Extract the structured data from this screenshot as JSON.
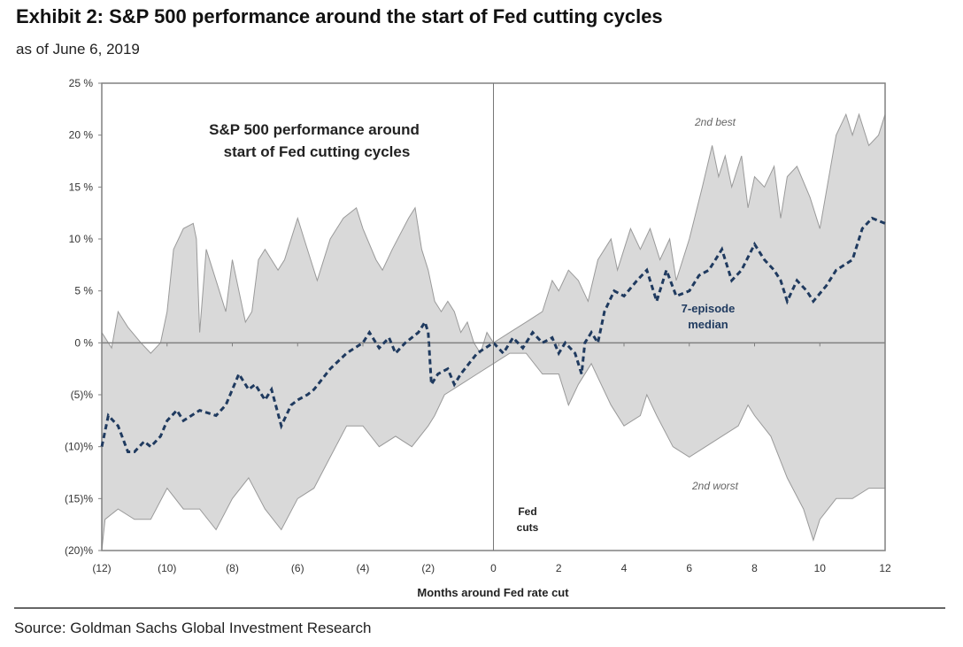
{
  "header": {
    "title": "Exhibit 2: S&P 500 performance around the start of Fed cutting cycles",
    "subtitle": "as of June 6, 2019"
  },
  "footer": {
    "source": "Source: Goldman Sachs Global Investment Research"
  },
  "colors": {
    "band": "#d9d9d9",
    "band_edge": "#9a9a9a",
    "median": "#1f3a5f",
    "axis": "#808080"
  },
  "chart_data": {
    "type": "area",
    "title": "S&P 500 performance around start of Fed cutting cycles",
    "xlabel": "Months around Fed rate cut",
    "ylabel": "",
    "xlim": [
      -12,
      12
    ],
    "ylim": [
      -20,
      25
    ],
    "x_ticks": [
      -12,
      -10,
      -8,
      -6,
      -4,
      -2,
      0,
      2,
      4,
      6,
      8,
      10,
      12
    ],
    "x_tick_labels": [
      "(12)",
      "(10)",
      "(8)",
      "(6)",
      "(4)",
      "(2)",
      "0",
      "2",
      "4",
      "6",
      "8",
      "10",
      "12"
    ],
    "y_ticks": [
      25,
      20,
      15,
      10,
      5,
      0,
      -5,
      -10,
      -15,
      -20
    ],
    "y_tick_labels": [
      "25 %",
      "20 %",
      "15 %",
      "10 %",
      "5 %",
      "0 %",
      "(5)%",
      "(10)%",
      "(15)%",
      "(20)%"
    ],
    "annotations": {
      "best": "2nd best",
      "worst": "2nd worst",
      "median_line1": "7-episode",
      "median_line2": "median",
      "cut_line1": "Fed",
      "cut_line2": "cuts"
    },
    "series": [
      {
        "name": "2nd best",
        "points": [
          [
            -12,
            1
          ],
          [
            -11.7,
            -0.5
          ],
          [
            -11.5,
            3
          ],
          [
            -11.2,
            1.5
          ],
          [
            -10.8,
            0
          ],
          [
            -10.5,
            -1
          ],
          [
            -10.2,
            0
          ],
          [
            -10,
            3
          ],
          [
            -9.8,
            9
          ],
          [
            -9.5,
            11
          ],
          [
            -9.2,
            11.5
          ],
          [
            -9.1,
            10
          ],
          [
            -9,
            1
          ],
          [
            -8.8,
            9
          ],
          [
            -8.6,
            7
          ],
          [
            -8.4,
            5
          ],
          [
            -8.2,
            3
          ],
          [
            -8,
            8
          ],
          [
            -7.8,
            5
          ],
          [
            -7.6,
            2
          ],
          [
            -7.4,
            3
          ],
          [
            -7.2,
            8
          ],
          [
            -7,
            9
          ],
          [
            -6.8,
            8
          ],
          [
            -6.6,
            7
          ],
          [
            -6.4,
            8
          ],
          [
            -6,
            12
          ],
          [
            -5.8,
            10
          ],
          [
            -5.6,
            8
          ],
          [
            -5.4,
            6
          ],
          [
            -5,
            10
          ],
          [
            -4.6,
            12
          ],
          [
            -4.2,
            13
          ],
          [
            -4,
            11
          ],
          [
            -3.6,
            8
          ],
          [
            -3.4,
            7
          ],
          [
            -3.1,
            9
          ],
          [
            -2.6,
            12
          ],
          [
            -2.4,
            13
          ],
          [
            -2.2,
            9
          ],
          [
            -2,
            7
          ],
          [
            -1.8,
            4
          ],
          [
            -1.6,
            3
          ],
          [
            -1.4,
            4
          ],
          [
            -1.2,
            3
          ],
          [
            -1,
            1
          ],
          [
            -0.8,
            2
          ],
          [
            -0.6,
            0
          ],
          [
            -0.4,
            -1
          ],
          [
            -0.2,
            1
          ],
          [
            0,
            0
          ],
          [
            0.5,
            1
          ],
          [
            1,
            2
          ],
          [
            1.5,
            3
          ],
          [
            1.8,
            6
          ],
          [
            2,
            5
          ],
          [
            2.3,
            7
          ],
          [
            2.6,
            6
          ],
          [
            2.9,
            4
          ],
          [
            3.2,
            8
          ],
          [
            3.6,
            10
          ],
          [
            3.8,
            7
          ],
          [
            4.2,
            11
          ],
          [
            4.5,
            9
          ],
          [
            4.8,
            11
          ],
          [
            5.1,
            8
          ],
          [
            5.4,
            10
          ],
          [
            5.6,
            6
          ],
          [
            6,
            10
          ],
          [
            6.4,
            15
          ],
          [
            6.7,
            19
          ],
          [
            6.9,
            16
          ],
          [
            7.1,
            18
          ],
          [
            7.3,
            15
          ],
          [
            7.6,
            18
          ],
          [
            7.8,
            13
          ],
          [
            8,
            16
          ],
          [
            8.3,
            15
          ],
          [
            8.6,
            17
          ],
          [
            8.8,
            12
          ],
          [
            9,
            16
          ],
          [
            9.3,
            17
          ],
          [
            9.7,
            14
          ],
          [
            10,
            11
          ],
          [
            10.5,
            20
          ],
          [
            10.8,
            22
          ],
          [
            11,
            20
          ],
          [
            11.2,
            22
          ],
          [
            11.5,
            19
          ],
          [
            11.8,
            20
          ],
          [
            12,
            22
          ]
        ]
      },
      {
        "name": "2nd worst",
        "points": [
          [
            -12,
            -20
          ],
          [
            -11.9,
            -17
          ],
          [
            -11.5,
            -16
          ],
          [
            -11,
            -17
          ],
          [
            -10.5,
            -17
          ],
          [
            -10,
            -14
          ],
          [
            -9.5,
            -16
          ],
          [
            -9,
            -16
          ],
          [
            -8.5,
            -18
          ],
          [
            -8,
            -15
          ],
          [
            -7.5,
            -13
          ],
          [
            -7,
            -16
          ],
          [
            -6.5,
            -18
          ],
          [
            -6,
            -15
          ],
          [
            -5.5,
            -14
          ],
          [
            -5,
            -11
          ],
          [
            -4.5,
            -8
          ],
          [
            -4,
            -8
          ],
          [
            -3.5,
            -10
          ],
          [
            -3,
            -9
          ],
          [
            -2.5,
            -10
          ],
          [
            -2,
            -8
          ],
          [
            -1.8,
            -7
          ],
          [
            -1.5,
            -5
          ],
          [
            -1,
            -4
          ],
          [
            -0.5,
            -3
          ],
          [
            0,
            -2
          ],
          [
            0.5,
            -1
          ],
          [
            1,
            -1
          ],
          [
            1.5,
            -3
          ],
          [
            2,
            -3
          ],
          [
            2.3,
            -6
          ],
          [
            2.6,
            -4
          ],
          [
            3,
            -2
          ],
          [
            3.3,
            -4
          ],
          [
            3.6,
            -6
          ],
          [
            4,
            -8
          ],
          [
            4.5,
            -7
          ],
          [
            4.7,
            -5
          ],
          [
            5,
            -7
          ],
          [
            5.5,
            -10
          ],
          [
            6,
            -11
          ],
          [
            6.5,
            -10
          ],
          [
            7,
            -9
          ],
          [
            7.5,
            -8
          ],
          [
            7.8,
            -6
          ],
          [
            8,
            -7
          ],
          [
            8.5,
            -9
          ],
          [
            9,
            -13
          ],
          [
            9.5,
            -16
          ],
          [
            9.8,
            -19
          ],
          [
            10,
            -17
          ],
          [
            10.5,
            -15
          ],
          [
            11,
            -15
          ],
          [
            11.5,
            -14
          ],
          [
            12,
            -14
          ]
        ]
      },
      {
        "name": "7-episode median",
        "points": [
          [
            -12,
            -10
          ],
          [
            -11.8,
            -7
          ],
          [
            -11.5,
            -8
          ],
          [
            -11.2,
            -10.5
          ],
          [
            -11,
            -10.5
          ],
          [
            -10.7,
            -9.5
          ],
          [
            -10.5,
            -10
          ],
          [
            -10.2,
            -9
          ],
          [
            -10,
            -7.5
          ],
          [
            -9.7,
            -6.5
          ],
          [
            -9.5,
            -7.5
          ],
          [
            -9,
            -6.5
          ],
          [
            -8.5,
            -7
          ],
          [
            -8.2,
            -6
          ],
          [
            -8,
            -4.5
          ],
          [
            -7.8,
            -3
          ],
          [
            -7.5,
            -4.5
          ],
          [
            -7.3,
            -4
          ],
          [
            -7,
            -5.5
          ],
          [
            -6.8,
            -4.5
          ],
          [
            -6.5,
            -8
          ],
          [
            -6.2,
            -6
          ],
          [
            -6,
            -5.5
          ],
          [
            -5.7,
            -5
          ],
          [
            -5.5,
            -4.5
          ],
          [
            -5,
            -2.5
          ],
          [
            -4.5,
            -1
          ],
          [
            -4,
            0
          ],
          [
            -3.8,
            1
          ],
          [
            -3.5,
            -0.5
          ],
          [
            -3.2,
            0.5
          ],
          [
            -3,
            -1
          ],
          [
            -2.7,
            0
          ],
          [
            -2.3,
            1
          ],
          [
            -2.1,
            2
          ],
          [
            -2,
            1
          ],
          [
            -1.9,
            -4
          ],
          [
            -1.7,
            -3
          ],
          [
            -1.4,
            -2.5
          ],
          [
            -1.2,
            -4
          ],
          [
            -1,
            -3
          ],
          [
            -0.5,
            -1
          ],
          [
            0,
            0
          ],
          [
            0.3,
            -1
          ],
          [
            0.6,
            0.5
          ],
          [
            0.9,
            -0.5
          ],
          [
            1.2,
            1
          ],
          [
            1.5,
            0
          ],
          [
            1.8,
            0.5
          ],
          [
            2,
            -1
          ],
          [
            2.2,
            0
          ],
          [
            2.5,
            -1
          ],
          [
            2.7,
            -3
          ],
          [
            2.8,
            0
          ],
          [
            3,
            1
          ],
          [
            3.2,
            0
          ],
          [
            3.4,
            3
          ],
          [
            3.7,
            5
          ],
          [
            4,
            4.5
          ],
          [
            4.4,
            6
          ],
          [
            4.7,
            7
          ],
          [
            5,
            4
          ],
          [
            5.3,
            7
          ],
          [
            5.6,
            4.5
          ],
          [
            6,
            5
          ],
          [
            6.3,
            6.5
          ],
          [
            6.6,
            7
          ],
          [
            7,
            9
          ],
          [
            7.3,
            6
          ],
          [
            7.6,
            7
          ],
          [
            8,
            9.5
          ],
          [
            8.3,
            8
          ],
          [
            8.6,
            7
          ],
          [
            8.8,
            6
          ],
          [
            9,
            4
          ],
          [
            9.3,
            6
          ],
          [
            9.6,
            5
          ],
          [
            9.8,
            4
          ],
          [
            10.2,
            5.5
          ],
          [
            10.5,
            7
          ],
          [
            11,
            8
          ],
          [
            11.3,
            11
          ],
          [
            11.6,
            12
          ],
          [
            12,
            11.5
          ]
        ]
      }
    ]
  }
}
